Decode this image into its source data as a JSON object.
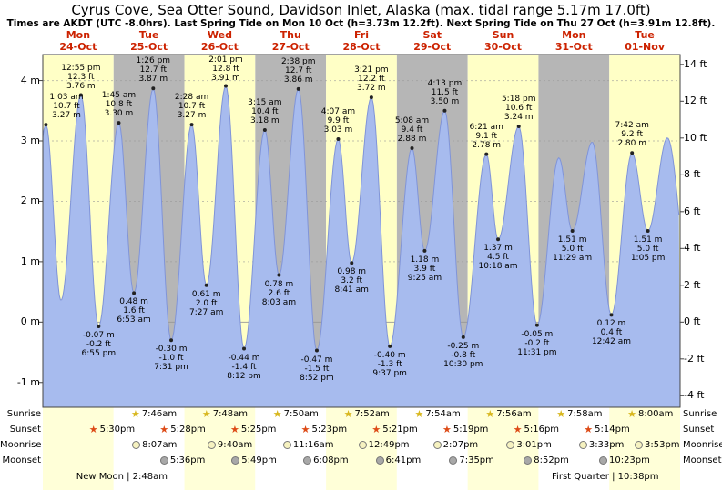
{
  "title": "Cyrus Cove, Sea Otter Sound, Davidson Inlet, Alaska (max. tidal range 5.17m 17.0ft)",
  "subtitle": "Times are AKDT (UTC -8.0hrs). Last Spring Tide on Mon 10 Oct (h=3.73m 12.2ft). Next Spring Tide on Thu 27 Oct (h=3.91m 12.8ft).",
  "days": [
    {
      "name": "Mon",
      "date": "24-Oct"
    },
    {
      "name": "Tue",
      "date": "25-Oct"
    },
    {
      "name": "Wed",
      "date": "26-Oct"
    },
    {
      "name": "Thu",
      "date": "27-Oct"
    },
    {
      "name": "Fri",
      "date": "28-Oct"
    },
    {
      "name": "Sat",
      "date": "29-Oct"
    },
    {
      "name": "Sun",
      "date": "30-Oct"
    },
    {
      "name": "Mon",
      "date": "31-Oct"
    },
    {
      "name": "Tue",
      "date": "01-Nov"
    }
  ],
  "axes": {
    "left_ticks": [
      {
        "label": "4 m",
        "m": 4
      },
      {
        "label": "3 m",
        "m": 3
      },
      {
        "label": "2 m",
        "m": 2
      },
      {
        "label": "1 m",
        "m": 1
      },
      {
        "label": "0 m",
        "m": 0
      },
      {
        "label": "-1 m",
        "m": -1
      }
    ],
    "right_ticks": [
      {
        "label": "14 ft",
        "ft": 14
      },
      {
        "label": "12 ft",
        "ft": 12
      },
      {
        "label": "10 ft",
        "ft": 10
      },
      {
        "label": "8 ft",
        "ft": 8
      },
      {
        "label": "6 ft",
        "ft": 6
      },
      {
        "label": "4 ft",
        "ft": 4
      },
      {
        "label": "2 ft",
        "ft": 2
      },
      {
        "label": "0 ft",
        "ft": 0
      },
      {
        "label": "-2 ft",
        "ft": -2
      },
      {
        "label": "-4 ft",
        "ft": -4
      }
    ]
  },
  "chart_data": {
    "type": "area",
    "title": "Tide height curve over 9 days",
    "x_axis": {
      "start": "Mon 24-Oct 00:00",
      "end": "Wed 02-Nov 00:00",
      "days": 9
    },
    "ylim_m": [
      -1.41,
      4.43
    ],
    "ylabel_left": "m",
    "ylabel_right": "ft",
    "extremes": [
      {
        "t": -5.5,
        "type": "low",
        "m": -0.1,
        "estimated": true
      },
      {
        "t": 1.05,
        "day": 0,
        "type": "high",
        "m": 3.27,
        "ft": 10.7,
        "label": [
          "1:03 am",
          "10.7 ft",
          "3.27 m"
        ]
      },
      {
        "t": 6.17,
        "day": 0,
        "type": "low",
        "m": 0.36,
        "estimated": true
      },
      {
        "t": 12.92,
        "day": 0,
        "type": "high",
        "m": 3.76,
        "ft": 12.3,
        "label": [
          "12:55 pm",
          "12.3 ft",
          "3.76 m"
        ]
      },
      {
        "t": 18.92,
        "day": 0,
        "type": "low",
        "m": -0.07,
        "ft": -0.2,
        "label": [
          "-0.07 m",
          "-0.2 ft",
          "6:55 pm"
        ]
      },
      {
        "t": 25.75,
        "day": 1,
        "type": "high",
        "m": 3.3,
        "ft": 10.8,
        "label": [
          "1:45 am",
          "10.8 ft",
          "3.30 m"
        ]
      },
      {
        "t": 30.88,
        "day": 1,
        "type": "low",
        "m": 0.48,
        "ft": 1.6,
        "label": [
          "0.48 m",
          "1.6 ft",
          "6:53 am"
        ]
      },
      {
        "t": 37.43,
        "day": 1,
        "type": "high",
        "m": 3.87,
        "ft": 12.7,
        "label": [
          "1:26 pm",
          "12.7 ft",
          "3.87 m"
        ]
      },
      {
        "t": 43.52,
        "day": 1,
        "type": "low",
        "m": -0.3,
        "ft": -1.0,
        "label": [
          "-0.30 m",
          "-1.0 ft",
          "7:31 pm"
        ]
      },
      {
        "t": 50.47,
        "day": 2,
        "type": "high",
        "m": 3.27,
        "ft": 10.7,
        "label": [
          "2:28 am",
          "10.7 ft",
          "3.27 m"
        ]
      },
      {
        "t": 55.45,
        "day": 2,
        "type": "low",
        "m": 0.61,
        "ft": 2.0,
        "label": [
          "0.61 m",
          "2.0 ft",
          "7:27 am"
        ]
      },
      {
        "t": 62.02,
        "day": 2,
        "type": "high",
        "m": 3.91,
        "ft": 12.8,
        "label": [
          "2:01 pm",
          "12.8 ft",
          "3.91 m"
        ]
      },
      {
        "t": 68.2,
        "day": 2,
        "type": "low",
        "m": -0.44,
        "ft": -1.4,
        "label": [
          "-0.44 m",
          "-1.4 ft",
          "8:12 pm"
        ]
      },
      {
        "t": 75.25,
        "day": 3,
        "type": "high",
        "m": 3.18,
        "ft": 10.4,
        "label": [
          "3:15 am",
          "10.4 ft",
          "3.18 m"
        ]
      },
      {
        "t": 80.05,
        "day": 3,
        "type": "low",
        "m": 0.78,
        "ft": 2.6,
        "label": [
          "0.78 m",
          "2.6 ft",
          "8:03 am"
        ]
      },
      {
        "t": 86.63,
        "day": 3,
        "type": "high",
        "m": 3.86,
        "ft": 12.7,
        "label": [
          "2:38 pm",
          "12.7 ft",
          "3.86 m"
        ]
      },
      {
        "t": 92.87,
        "day": 3,
        "type": "low",
        "m": -0.47,
        "ft": -1.5,
        "label": [
          "-0.47 m",
          "-1.5 ft",
          "8:52 pm"
        ]
      },
      {
        "t": 100.12,
        "day": 4,
        "type": "high",
        "m": 3.03,
        "ft": 9.9,
        "label": [
          "4:07 am",
          "9.9 ft",
          "3.03 m"
        ]
      },
      {
        "t": 104.68,
        "day": 4,
        "type": "low",
        "m": 0.98,
        "ft": 3.2,
        "label": [
          "0.98 m",
          "3.2 ft",
          "8:41 am"
        ]
      },
      {
        "t": 111.35,
        "day": 4,
        "type": "high",
        "m": 3.72,
        "ft": 12.2,
        "label": [
          "3:21 pm",
          "12.2 ft",
          "3.72 m"
        ]
      },
      {
        "t": 117.62,
        "day": 4,
        "type": "low",
        "m": -0.4,
        "ft": -1.3,
        "label": [
          "-0.40 m",
          "-1.3 ft",
          "9:37 pm"
        ]
      },
      {
        "t": 125.13,
        "day": 5,
        "type": "high",
        "m": 2.88,
        "ft": 9.4,
        "label": [
          "5:08 am",
          "9.4 ft",
          "2.88 m"
        ]
      },
      {
        "t": 129.42,
        "day": 5,
        "type": "low",
        "m": 1.18,
        "ft": 3.9,
        "label": [
          "1.18 m",
          "3.9 ft",
          "9:25 am"
        ]
      },
      {
        "t": 136.22,
        "day": 5,
        "type": "high",
        "m": 3.5,
        "ft": 11.5,
        "label": [
          "4:13 pm",
          "11.5 ft",
          "3.50 m"
        ]
      },
      {
        "t": 142.5,
        "day": 5,
        "type": "low",
        "m": -0.25,
        "ft": -0.8,
        "label": [
          "-0.25 m",
          "-0.8 ft",
          "10:30 pm"
        ]
      },
      {
        "t": 150.35,
        "day": 6,
        "type": "high",
        "m": 2.78,
        "ft": 9.1,
        "label": [
          "6:21 am",
          "9.1 ft",
          "2.78 m"
        ]
      },
      {
        "t": 154.3,
        "day": 6,
        "type": "low",
        "m": 1.37,
        "ft": 4.5,
        "label": [
          "1.37 m",
          "4.5 ft",
          "10:18 am"
        ]
      },
      {
        "t": 161.3,
        "day": 6,
        "type": "high",
        "m": 3.24,
        "ft": 10.6,
        "label": [
          "5:18 pm",
          "10.6 ft",
          "3.24 m"
        ]
      },
      {
        "t": 167.52,
        "day": 6,
        "type": "low",
        "m": -0.05,
        "ft": -0.2,
        "label": [
          "-0.05 m",
          "-0.2 ft",
          "11:31 pm"
        ]
      },
      {
        "t": 174.9,
        "day": 7,
        "type": "high",
        "m": 2.72,
        "estimated": true
      },
      {
        "t": 179.48,
        "day": 7,
        "type": "low",
        "m": 1.51,
        "ft": 5.0,
        "label": [
          "1.51 m",
          "5.0 ft",
          "11:29 am"
        ]
      },
      {
        "t": 186.2,
        "day": 7,
        "type": "high",
        "m": 2.98,
        "estimated": true
      },
      {
        "t": 192.7,
        "day": 8,
        "type": "low",
        "m": 0.12,
        "ft": 0.4,
        "label": [
          "0.12 m",
          "0.4 ft",
          "12:42 am"
        ]
      },
      {
        "t": 199.7,
        "day": 8,
        "type": "high",
        "m": 2.8,
        "ft": 9.2,
        "label": [
          "7:42 am",
          "9.2 ft",
          "2.80 m"
        ]
      },
      {
        "t": 205.08,
        "day": 8,
        "type": "low",
        "m": 1.51,
        "ft": 5.0,
        "label": [
          "1.51 m",
          "5.0 ft",
          "1:05 pm"
        ]
      },
      {
        "t": 211.7,
        "day": 8,
        "type": "high",
        "m": 3.05,
        "estimated": true
      },
      {
        "t": 219.5,
        "type": "low",
        "m": 0.5,
        "estimated": true
      }
    ]
  },
  "astronomy": {
    "rows": [
      {
        "id": "sunrise",
        "label": "Sunrise",
        "icon": "sunrise-star",
        "entries": [
          {
            "day": 1,
            "time": "7:46am"
          },
          {
            "day": 2,
            "time": "7:48am"
          },
          {
            "day": 3,
            "time": "7:50am"
          },
          {
            "day": 4,
            "time": "7:52am"
          },
          {
            "day": 5,
            "time": "7:54am"
          },
          {
            "day": 6,
            "time": "7:56am"
          },
          {
            "day": 7,
            "time": "7:58am"
          },
          {
            "day": 8,
            "time": "8:00am"
          }
        ]
      },
      {
        "id": "sunset",
        "label": "Sunset",
        "icon": "sunset-star",
        "entries": [
          {
            "day": 0,
            "time": "5:30pm"
          },
          {
            "day": 1,
            "time": "5:28pm"
          },
          {
            "day": 2,
            "time": "5:25pm"
          },
          {
            "day": 3,
            "time": "5:23pm"
          },
          {
            "day": 4,
            "time": "5:21pm"
          },
          {
            "day": 5,
            "time": "5:19pm"
          },
          {
            "day": 6,
            "time": "5:16pm"
          },
          {
            "day": 7,
            "time": "5:14pm"
          }
        ]
      },
      {
        "id": "moonrise",
        "label": "Moonrise",
        "icon": "moonrise-moon",
        "entries": [
          {
            "day": 1,
            "time": "8:07am"
          },
          {
            "day": 2,
            "time": "9:40am"
          },
          {
            "day": 3,
            "time": "11:16am"
          },
          {
            "day": 4,
            "time": "12:49pm"
          },
          {
            "day": 5,
            "time": "2:07pm"
          },
          {
            "day": 6,
            "time": "3:01pm"
          },
          {
            "day": 7,
            "time": "3:33pm"
          },
          {
            "day": 8,
            "time": "3:53pm"
          }
        ]
      },
      {
        "id": "moonset",
        "label": "Moonset",
        "icon": "moonset-moon",
        "entries": [
          {
            "day": 1,
            "time": "5:36pm"
          },
          {
            "day": 2,
            "time": "5:49pm"
          },
          {
            "day": 3,
            "time": "6:08pm"
          },
          {
            "day": 4,
            "time": "6:41pm"
          },
          {
            "day": 5,
            "time": "7:35pm"
          },
          {
            "day": 6,
            "time": "8:52pm"
          },
          {
            "day": 7,
            "time": "10:23pm"
          }
        ]
      }
    ],
    "phases": [
      {
        "name": "New Moon",
        "time": "2:48am",
        "day": 1
      },
      {
        "name": "First Quarter",
        "time": "10:38pm",
        "day": 7
      }
    ]
  },
  "colors": {
    "band_yellow": "#ffffc6",
    "band_gray": "#b6b6b6",
    "strip_yellow": "#ffffd8",
    "strip_white": "#ffffff",
    "tide_fill": "#a7bbee",
    "tide_line": "#8094d8",
    "date_red": "#cc2200",
    "grid": "#999999",
    "frame": "#444444",
    "sunrise_star": "#d8b71e",
    "sunset_star": "#dd4a16",
    "moonrise_fill": "#f6f2c0",
    "moonset_fill": "#a8a8a8"
  }
}
